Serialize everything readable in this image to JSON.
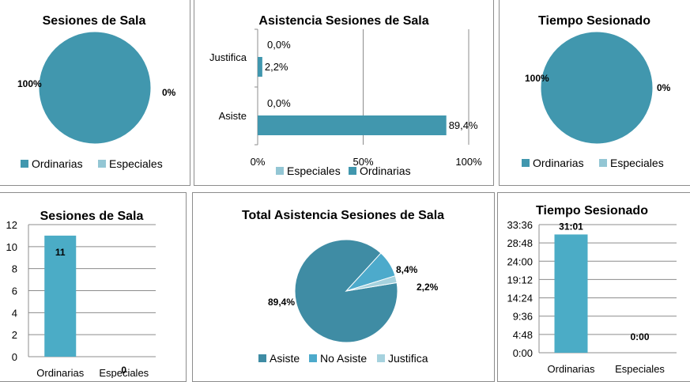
{
  "colors": {
    "ordinarias": "#4197AE",
    "especiales": "#93C6D4",
    "asiste": "#3F8CA4",
    "no_asiste": "#4DAACB",
    "justifica": "#A6D2DE",
    "bar": "#4BACC6",
    "grid": "#8c8c8c"
  },
  "chart_data": [
    {
      "id": "pie-sesiones",
      "type": "pie",
      "title": "Sesiones de Sala",
      "categories": [
        "Ordinarias",
        "Especiales"
      ],
      "values": [
        100,
        0
      ],
      "data_labels": [
        "100%",
        "0%"
      ],
      "legend": "bottom"
    },
    {
      "id": "bar-asistencia",
      "type": "bar",
      "orientation": "horizontal",
      "title": "Asistencia Sesiones de Sala",
      "categories": [
        "Justifica",
        "Asiste"
      ],
      "series": [
        {
          "name": "Especiales",
          "values": [
            0.0,
            0.0
          ],
          "labels": [
            "0,0%",
            "0,0%"
          ]
        },
        {
          "name": "Ordinarias",
          "values": [
            2.2,
            89.4
          ],
          "labels": [
            "2,2%",
            "89,4%"
          ]
        }
      ],
      "xlim": [
        0,
        100
      ],
      "xticks": [
        "0%",
        "50%",
        "100%"
      ],
      "legend": "bottom"
    },
    {
      "id": "pie-tiempo",
      "type": "pie",
      "title": "Tiempo Sesionado",
      "categories": [
        "Ordinarias",
        "Especiales"
      ],
      "values": [
        100,
        0
      ],
      "data_labels": [
        "100%",
        "0%"
      ],
      "legend": "bottom"
    },
    {
      "id": "col-sesiones",
      "type": "bar",
      "title": "Sesiones de Sala",
      "categories": [
        "Ordinarias",
        "Especiales"
      ],
      "values": [
        11,
        0
      ],
      "data_labels": [
        "11",
        "0"
      ],
      "ylim": [
        0,
        12
      ],
      "yticks": [
        "0",
        "2",
        "4",
        "6",
        "8",
        "10",
        "12"
      ],
      "grid": true
    },
    {
      "id": "pie-total",
      "type": "pie",
      "title": "Total Asistencia Sesiones de Sala",
      "categories": [
        "Asiste",
        "No Asiste",
        "Justifica"
      ],
      "values": [
        89.4,
        8.4,
        2.2
      ],
      "data_labels": [
        "89,4%",
        "8,4%",
        "2,2%"
      ],
      "legend": "bottom"
    },
    {
      "id": "col-tiempo",
      "type": "bar",
      "title": "Tiempo Sesionado",
      "categories": [
        "Ordinarias",
        "Especiales"
      ],
      "values": [
        31.0167,
        0
      ],
      "data_labels": [
        "31:01",
        "0:00"
      ],
      "ylim": [
        0,
        33.6
      ],
      "yticks": [
        "0:00",
        "4:48",
        "9:36",
        "14:24",
        "19:12",
        "24:00",
        "28:48",
        "33:36"
      ],
      "grid": true
    }
  ]
}
